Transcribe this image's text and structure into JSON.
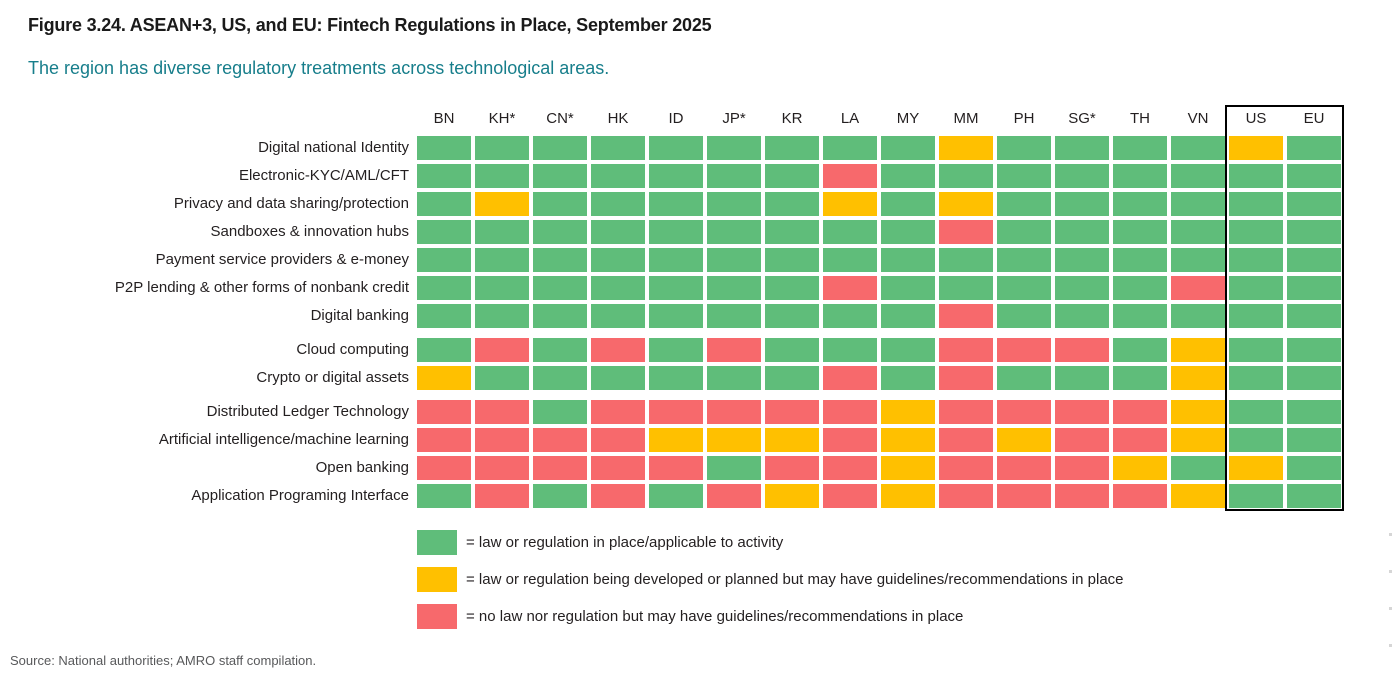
{
  "title": "Figure 3.24. ASEAN+3, US, and EU: Fintech Regulations in Place, September 2025",
  "subtitle": "The region has diverse regulatory treatments across technological areas.",
  "source": "Source: National authorities; AMRO staff compilation.",
  "colors": {
    "subtitle_teal": "#177E8B",
    "outline_black": "#000000",
    "in_place_green": "#5FBD7A",
    "planned_yellow": "#FFC000",
    "none_red": "#F7696C"
  },
  "chart_data": {
    "type": "heatmap",
    "title": "Figure 3.24. ASEAN+3, US, and EU: Fintech Regulations in Place, September 2025",
    "columns": [
      "BN",
      "KH*",
      "CN*",
      "HK",
      "ID",
      "JP*",
      "KR",
      "LA",
      "MY",
      "MM",
      "PH",
      "SG*",
      "TH",
      "VN",
      "US",
      "EU"
    ],
    "boxed_columns": [
      "US",
      "EU"
    ],
    "palette": {
      "G": "#5FBD7A",
      "Y": "#FFC000",
      "R": "#F7696C"
    },
    "status_meaning": {
      "G": "law or regulation in place/applicable to activity",
      "Y": "law or regulation being developed or planned but may have guidelines/recommendations in place",
      "R": "no law nor regulation but may have guidelines/recommendations in place"
    },
    "groups": [
      {
        "rows": [
          {
            "label": "Digital national Identity",
            "values": [
              "G",
              "G",
              "G",
              "G",
              "G",
              "G",
              "G",
              "G",
              "G",
              "Y",
              "G",
              "G",
              "G",
              "G",
              "Y",
              "G"
            ]
          },
          {
            "label": "Electronic-KYC/AML/CFT",
            "values": [
              "G",
              "G",
              "G",
              "G",
              "G",
              "G",
              "G",
              "R",
              "G",
              "G",
              "G",
              "G",
              "G",
              "G",
              "G",
              "G"
            ]
          },
          {
            "label": "Privacy and data sharing/protection",
            "values": [
              "G",
              "Y",
              "G",
              "G",
              "G",
              "G",
              "G",
              "Y",
              "G",
              "Y",
              "G",
              "G",
              "G",
              "G",
              "G",
              "G"
            ]
          },
          {
            "label": "Sandboxes & innovation hubs",
            "values": [
              "G",
              "G",
              "G",
              "G",
              "G",
              "G",
              "G",
              "G",
              "G",
              "R",
              "G",
              "G",
              "G",
              "G",
              "G",
              "G"
            ]
          },
          {
            "label": "Payment service providers & e-money",
            "values": [
              "G",
              "G",
              "G",
              "G",
              "G",
              "G",
              "G",
              "G",
              "G",
              "G",
              "G",
              "G",
              "G",
              "G",
              "G",
              "G"
            ]
          },
          {
            "label": "P2P lending & other forms of nonbank credit",
            "values": [
              "G",
              "G",
              "G",
              "G",
              "G",
              "G",
              "G",
              "R",
              "G",
              "G",
              "G",
              "G",
              "G",
              "R",
              "G",
              "G"
            ]
          },
          {
            "label": "Digital banking",
            "values": [
              "G",
              "G",
              "G",
              "G",
              "G",
              "G",
              "G",
              "G",
              "G",
              "R",
              "G",
              "G",
              "G",
              "G",
              "G",
              "G"
            ]
          }
        ]
      },
      {
        "rows": [
          {
            "label": "Cloud computing",
            "values": [
              "G",
              "R",
              "G",
              "R",
              "G",
              "R",
              "G",
              "G",
              "G",
              "R",
              "R",
              "R",
              "G",
              "Y",
              "G",
              "G"
            ]
          },
          {
            "label": "Crypto or digital assets",
            "values": [
              "Y",
              "G",
              "G",
              "G",
              "G",
              "G",
              "G",
              "R",
              "G",
              "R",
              "G",
              "G",
              "G",
              "Y",
              "G",
              "G"
            ]
          }
        ]
      },
      {
        "rows": [
          {
            "label": "Distributed Ledger Technology",
            "values": [
              "R",
              "R",
              "G",
              "R",
              "R",
              "R",
              "R",
              "R",
              "Y",
              "R",
              "R",
              "R",
              "R",
              "Y",
              "G",
              "G"
            ]
          },
          {
            "label": "Artificial intelligence/machine learning",
            "values": [
              "R",
              "R",
              "R",
              "R",
              "Y",
              "Y",
              "Y",
              "R",
              "Y",
              "R",
              "Y",
              "R",
              "R",
              "Y",
              "G",
              "G"
            ]
          },
          {
            "label": "Open banking",
            "values": [
              "R",
              "R",
              "R",
              "R",
              "R",
              "G",
              "R",
              "R",
              "Y",
              "R",
              "R",
              "R",
              "Y",
              "G",
              "Y",
              "G"
            ]
          },
          {
            "label": "Application Programing Interface",
            "values": [
              "G",
              "R",
              "G",
              "R",
              "G",
              "R",
              "Y",
              "R",
              "Y",
              "R",
              "R",
              "R",
              "R",
              "Y",
              "G",
              "G"
            ]
          }
        ]
      }
    ],
    "legend": [
      {
        "key": "G",
        "color": "#5FBD7A",
        "label": "= law or regulation in place/applicable to activity"
      },
      {
        "key": "Y",
        "color": "#FFC000",
        "label": "= law or regulation being developed or planned but may have guidelines/recommendations in place"
      },
      {
        "key": "R",
        "color": "#F7696C",
        "label": "= no law nor regulation but may have guidelines/recommendations in place"
      }
    ]
  }
}
